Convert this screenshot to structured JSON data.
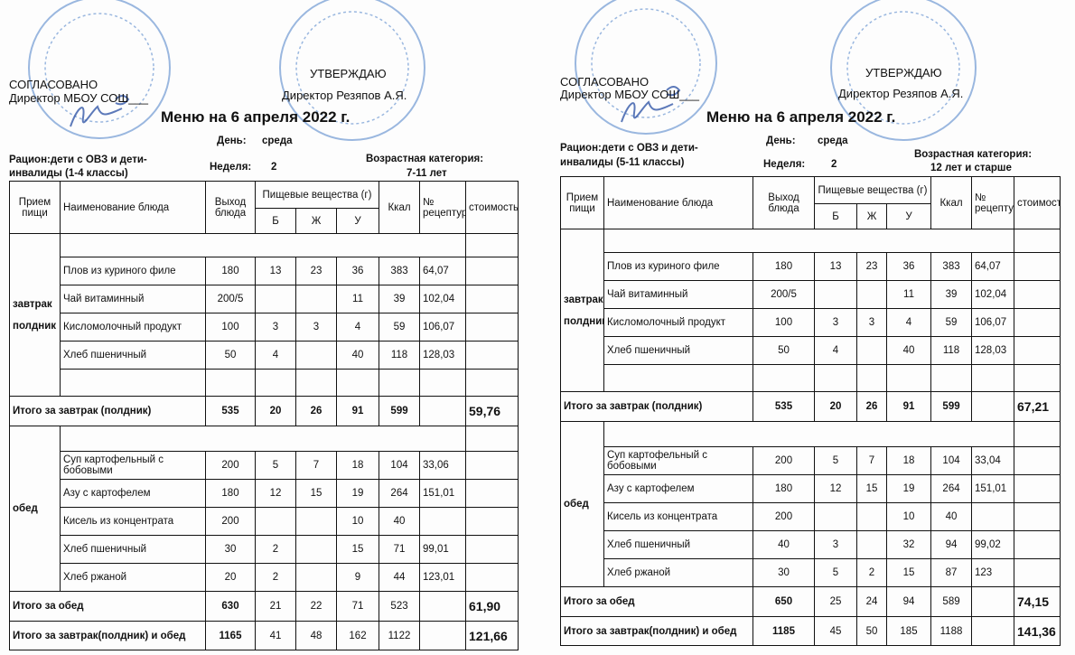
{
  "colors": {
    "ink": "#111111",
    "stamp": "#4a7fc8"
  },
  "columns": {
    "meal": "Прием пищи",
    "dish": "Наименование блюда",
    "output": "Выход блюда",
    "nutrients": "Пищевые вещества (г)",
    "b": "Б",
    "zh": "Ж",
    "u": "У",
    "kcal": "Ккал",
    "recipe": "№ рецептуры",
    "cost": "стоимость"
  },
  "menus": [
    {
      "agreed": "СОГЛАСОВАНО",
      "agreed_by": "Директор МБОУ СОШ___",
      "approved": "УТВЕРЖДАЮ",
      "approved_by": "Директор Резяпов А.Я.",
      "title": "Меню на 6 апреля  2022 г.",
      "day_label": "День:",
      "day": "среда",
      "week_label": "Неделя:",
      "week": "2",
      "ration_line1": "Рацион:дети с ОВЗ и дети-",
      "ration_line2": "инвалиды (1-4 классы)",
      "age_label": "Возрастная категория:",
      "age": "7-11 лет",
      "sections": [
        {
          "labels": [
            "завтрак",
            "полдник"
          ],
          "items": [
            {
              "dish": "Плов из куриного филе",
              "output": "180",
              "b": "13",
              "zh": "23",
              "u": "36",
              "kcal": "383",
              "recipe": "64,07"
            },
            {
              "dish": "Чай витаминный",
              "output": "200/5",
              "b": "",
              "zh": "",
              "u": "11",
              "kcal": "39",
              "recipe": "102,04"
            },
            {
              "dish": "Кисломолочный продукт",
              "output": "100",
              "b": "3",
              "zh": "3",
              "u": "4",
              "kcal": "59",
              "recipe": "106,07"
            },
            {
              "dish": "Хлеб пшеничный",
              "output": "50",
              "b": "4",
              "zh": "",
              "u": "40",
              "kcal": "118",
              "recipe": "128,03"
            }
          ],
          "blank_row": true,
          "total": {
            "label": "Итого за завтрак (полдник)",
            "output": "535",
            "b": "20",
            "zh": "26",
            "u": "91",
            "kcal": "599",
            "cost": "59,76"
          }
        },
        {
          "labels": [
            "обед"
          ],
          "items": [
            {
              "dish": "Суп картофельный с бобовыми",
              "output": "200",
              "b": "5",
              "zh": "7",
              "u": "18",
              "kcal": "104",
              "recipe": "33,06"
            },
            {
              "dish": "Азу с картофелем",
              "output": "180",
              "b": "12",
              "zh": "15",
              "u": "19",
              "kcal": "264",
              "recipe": "151,01"
            },
            {
              "dish": "Кисель из концентрата",
              "output": "200",
              "b": "",
              "zh": "",
              "u": "10",
              "kcal": "40",
              "recipe": ""
            },
            {
              "dish": "Хлеб пшеничный",
              "output": "30",
              "b": "2",
              "zh": "",
              "u": "15",
              "kcal": "71",
              "recipe": "99,01"
            },
            {
              "dish": "Хлеб ржаной",
              "output": "20",
              "b": "2",
              "zh": "",
              "u": "9",
              "kcal": "44",
              "recipe": "123,01"
            }
          ],
          "blank_row": false,
          "total": {
            "label": "Итого за обед",
            "output": "630",
            "b": "21",
            "zh": "22",
            "u": "71",
            "kcal": "523",
            "cost": "61,90"
          }
        }
      ],
      "grand_total": {
        "label": "Итого за завтрак(полдник) и обед",
        "output": "1165",
        "b": "41",
        "zh": "48",
        "u": "162",
        "kcal": "1122",
        "cost": "121,66"
      }
    },
    {
      "agreed": "СОГЛАСОВАНО",
      "agreed_by": "Директор МБОУ СОШ___",
      "approved": "УТВЕРЖДАЮ",
      "approved_by": "Директор Резяпов А.Я.",
      "title": "Меню на 6 апреля  2022 г.",
      "day_label": "День:",
      "day": "среда",
      "week_label": "Неделя:",
      "week": "2",
      "ration_line1": "Рацион:дети с ОВЗ и дети-",
      "ration_line2": "инвалиды (5-11 классы)",
      "age_label": "Возрастная категория:",
      "age": "12 лет и старше",
      "sections": [
        {
          "labels": [
            "завтрак",
            "полдник"
          ],
          "items": [
            {
              "dish": "Плов из куриного филе",
              "output": "180",
              "b": "13",
              "zh": "23",
              "u": "36",
              "kcal": "383",
              "recipe": "64,07"
            },
            {
              "dish": "Чай витаминный",
              "output": "200/5",
              "b": "",
              "zh": "",
              "u": "11",
              "kcal": "39",
              "recipe": "102,04"
            },
            {
              "dish": "Кисломолочный продукт",
              "output": "100",
              "b": "3",
              "zh": "3",
              "u": "4",
              "kcal": "59",
              "recipe": "106,07"
            },
            {
              "dish": "Хлеб пшеничный",
              "output": "50",
              "b": "4",
              "zh": "",
              "u": "40",
              "kcal": "118",
              "recipe": "128,03"
            }
          ],
          "blank_row": true,
          "total": {
            "label": "Итого за завтрак (полдник)",
            "output": "535",
            "b": "20",
            "zh": "26",
            "u": "91",
            "kcal": "599",
            "cost": "67,21"
          }
        },
        {
          "labels": [
            "обед"
          ],
          "items": [
            {
              "dish": "Суп картофельный с бобовыми",
              "output": "200",
              "b": "5",
              "zh": "7",
              "u": "18",
              "kcal": "104",
              "recipe": "33,04"
            },
            {
              "dish": "Азу с картофелем",
              "output": "180",
              "b": "12",
              "zh": "15",
              "u": "19",
              "kcal": "264",
              "recipe": "151,01"
            },
            {
              "dish": "Кисель из концентрата",
              "output": "200",
              "b": "",
              "zh": "",
              "u": "10",
              "kcal": "40",
              "recipe": ""
            },
            {
              "dish": "Хлеб пшеничный",
              "output": "40",
              "b": "3",
              "zh": "",
              "u": "32",
              "kcal": "94",
              "recipe": "99,02"
            },
            {
              "dish": "Хлеб ржаной",
              "output": "30",
              "b": "5",
              "zh": "2",
              "u": "15",
              "kcal": "87",
              "recipe": "123"
            }
          ],
          "blank_row": false,
          "total": {
            "label": "Итого за обед",
            "output": "650",
            "b": "25",
            "zh": "24",
            "u": "94",
            "kcal": "589",
            "cost": "74,15"
          }
        }
      ],
      "grand_total": {
        "label": "Итого за завтрак(полдник) и обед",
        "output": "1185",
        "b": "45",
        "zh": "50",
        "u": "185",
        "kcal": "1188",
        "cost": "141,36"
      }
    }
  ]
}
